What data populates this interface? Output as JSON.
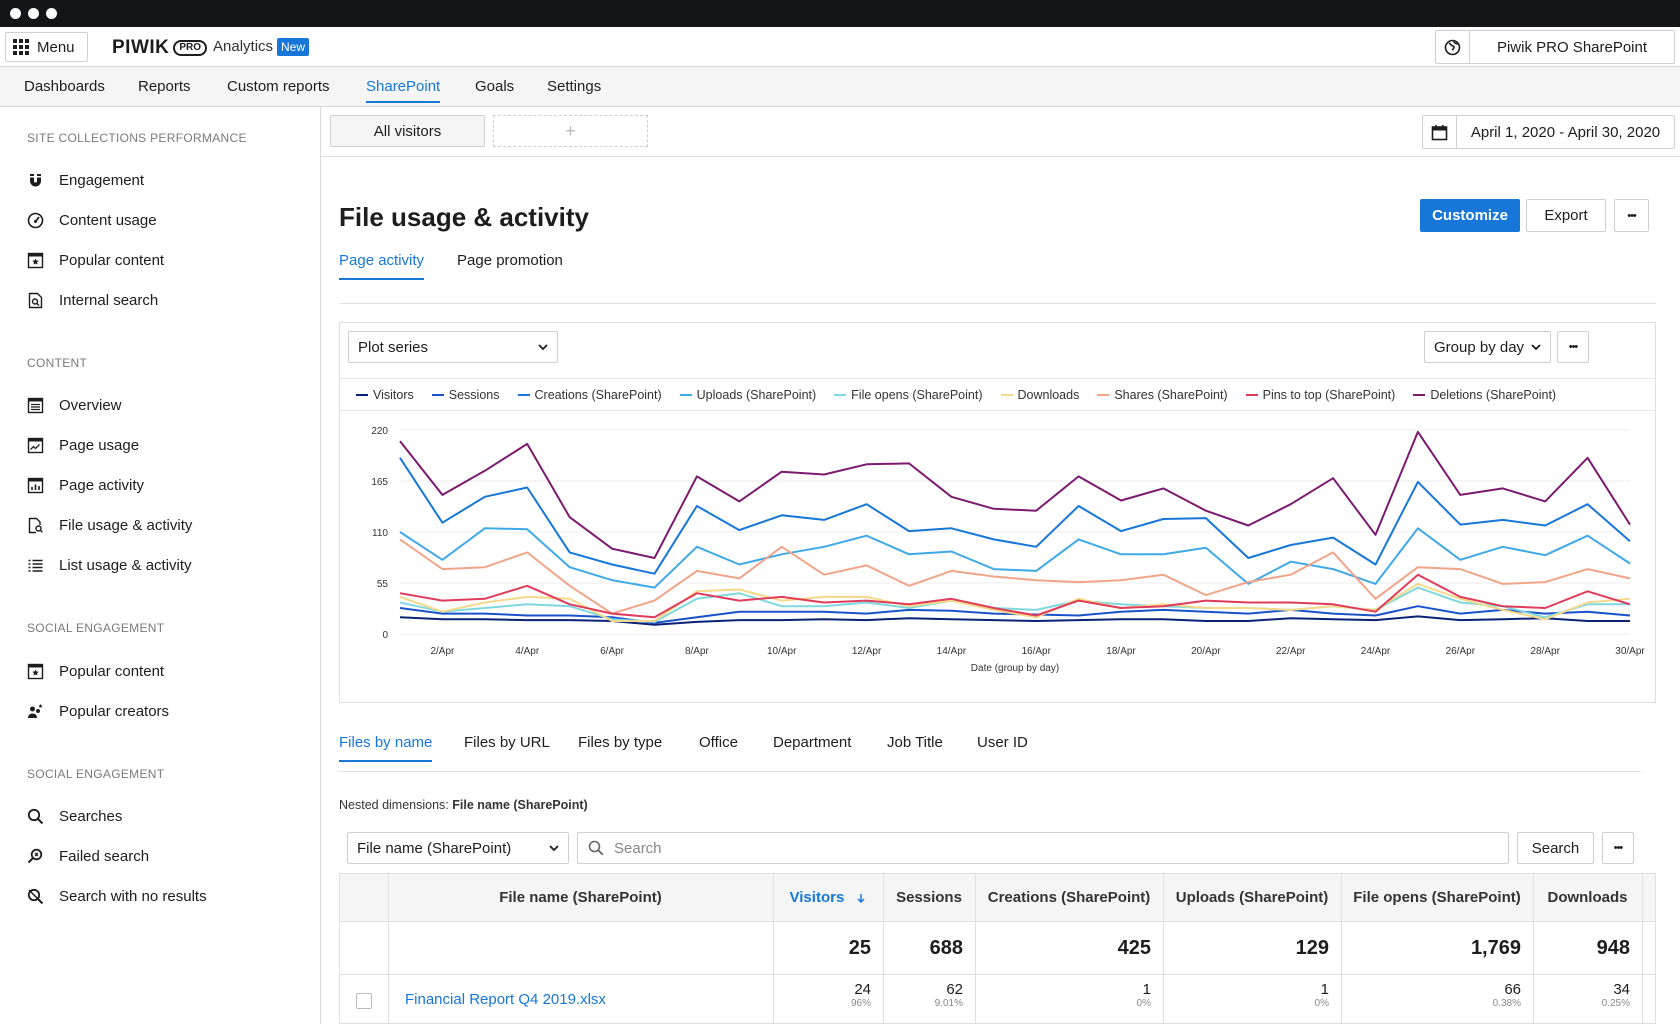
{
  "topbar": {
    "menu_label": "Menu",
    "logo_wordmark": "PIWIK",
    "logo_pro": "PRO",
    "app_name": "Analytics",
    "badge": "New",
    "site": "Piwik PRO SharePoint"
  },
  "nav": [
    {
      "label": "Dashboards"
    },
    {
      "label": "Reports"
    },
    {
      "label": "Custom reports"
    },
    {
      "label": "SharePoint",
      "active": true
    },
    {
      "label": "Goals"
    },
    {
      "label": "Settings"
    }
  ],
  "sidebar": {
    "sections": [
      {
        "title": "SITE COLLECTIONS PERFORMANCE",
        "items": [
          {
            "label": "Engagement",
            "icon": "magnet-icon"
          },
          {
            "label": "Content usage",
            "icon": "gauge-icon"
          },
          {
            "label": "Popular content",
            "icon": "star-page-icon"
          },
          {
            "label": "Internal search",
            "icon": "search-page-icon"
          }
        ]
      },
      {
        "title": "CONTENT",
        "items": [
          {
            "label": "Overview",
            "icon": "list-page-icon"
          },
          {
            "label": "Page usage",
            "icon": "trend-page-icon"
          },
          {
            "label": "Page activity",
            "icon": "bar-page-icon"
          },
          {
            "label": "File usage & activity",
            "icon": "file-search-icon"
          },
          {
            "label": "List usage & activity",
            "icon": "list-icon"
          }
        ]
      },
      {
        "title": "SOCIAL ENGAGEMENT",
        "items": [
          {
            "label": "Popular content",
            "icon": "star-page-icon"
          },
          {
            "label": "Popular creators",
            "icon": "users-star-icon"
          }
        ]
      },
      {
        "title": "SOCIAL ENGAGEMENT",
        "items": [
          {
            "label": "Searches",
            "icon": "search-icon"
          },
          {
            "label": "Failed search",
            "icon": "search-fail-icon"
          },
          {
            "label": "Search with no results",
            "icon": "search-off-icon"
          }
        ]
      }
    ]
  },
  "segments": {
    "active": "All visitors",
    "add": "+"
  },
  "date_range": "April 1,  2020 - April 30, 2020",
  "page": {
    "title": "File usage & activity",
    "customize": "Customize",
    "export": "Export",
    "more": "•••"
  },
  "report_tabs": [
    {
      "label": "Page activity",
      "active": true
    },
    {
      "label": "Page promotion"
    }
  ],
  "chart_controls": {
    "plot_series": "Plot series",
    "group_by": "Group by day",
    "more": "•••"
  },
  "chart_data": {
    "type": "line",
    "xlabel": "Date (group by day)",
    "ylabel": "",
    "ylim": [
      0,
      220
    ],
    "yticks": [
      0,
      55,
      110,
      165,
      220
    ],
    "x": [
      "1/Apr",
      "2/Apr",
      "3/Apr",
      "4/Apr",
      "5/Apr",
      "6/Apr",
      "7/Apr",
      "8/Apr",
      "9/Apr",
      "10/Apr",
      "11/Apr",
      "12/Apr",
      "13/Apr",
      "14/Apr",
      "15/Apr",
      "16/Apr",
      "17/Apr",
      "18/Apr",
      "19/Apr",
      "20/Apr",
      "21/Apr",
      "22/Apr",
      "23/Apr",
      "24/Apr",
      "25/Apr",
      "26/Apr",
      "27/Apr",
      "28/Apr",
      "29/Apr",
      "30/Apr"
    ],
    "xtick_labels": [
      "2/Apr",
      "4/Apr",
      "6/Apr",
      "8/Apr",
      "10/Apr",
      "12/Apr",
      "14/Apr",
      "16/Apr",
      "18/Apr",
      "20/Apr",
      "22/Apr",
      "24/Apr",
      "26/Apr",
      "28/Apr",
      "30/Apr"
    ],
    "series": [
      {
        "name": "Visitors",
        "color": "#0b2176",
        "values": [
          18,
          16,
          16,
          15,
          15,
          14,
          10,
          13,
          15,
          15,
          16,
          15,
          17,
          16,
          15,
          14,
          15,
          16,
          16,
          14,
          14,
          17,
          16,
          15,
          19,
          15,
          16,
          17,
          14,
          14
        ]
      },
      {
        "name": "Sessions",
        "color": "#1a52c9",
        "values": [
          28,
          22,
          22,
          20,
          20,
          18,
          12,
          18,
          24,
          24,
          24,
          22,
          26,
          25,
          22,
          21,
          20,
          24,
          26,
          24,
          22,
          26,
          22,
          20,
          30,
          22,
          26,
          22,
          24,
          20
        ]
      },
      {
        "name": "Creations (SharePoint)",
        "color": "#1677d9",
        "values": [
          190,
          120,
          148,
          158,
          88,
          75,
          65,
          138,
          112,
          128,
          123,
          140,
          111,
          114,
          102,
          94,
          138,
          111,
          124,
          125,
          82,
          96,
          104,
          75,
          164,
          118,
          123,
          117,
          140,
          100
        ]
      },
      {
        "name": "Uploads (SharePoint)",
        "color": "#3fa9e8",
        "values": [
          110,
          80,
          114,
          113,
          72,
          58,
          50,
          94,
          75,
          86,
          94,
          106,
          86,
          89,
          70,
          68,
          102,
          86,
          86,
          93,
          54,
          78,
          70,
          54,
          114,
          80,
          94,
          85,
          106,
          76
        ]
      },
      {
        "name": "File opens (SharePoint)",
        "color": "#7fd8e0",
        "values": [
          34,
          24,
          28,
          32,
          30,
          16,
          13,
          38,
          44,
          30,
          30,
          34,
          28,
          36,
          28,
          26,
          36,
          32,
          30,
          28,
          28,
          26,
          30,
          26,
          50,
          34,
          30,
          18,
          32,
          32
        ]
      },
      {
        "name": "Downloads",
        "color": "#f5d98a",
        "values": [
          40,
          24,
          34,
          40,
          38,
          14,
          14,
          46,
          48,
          36,
          40,
          40,
          30,
          36,
          26,
          18,
          38,
          28,
          32,
          28,
          28,
          26,
          30,
          26,
          54,
          38,
          26,
          16,
          34,
          38
        ]
      },
      {
        "name": "Shares (SharePoint)",
        "color": "#f0a488",
        "values": [
          102,
          70,
          72,
          88,
          52,
          22,
          36,
          68,
          60,
          94,
          64,
          74,
          52,
          68,
          62,
          58,
          56,
          58,
          64,
          42,
          56,
          64,
          88,
          38,
          72,
          70,
          54,
          56,
          70,
          60
        ]
      },
      {
        "name": "Pins to top (SharePoint)",
        "color": "#e03b5a",
        "values": [
          44,
          36,
          38,
          52,
          32,
          22,
          18,
          44,
          36,
          40,
          34,
          36,
          32,
          38,
          28,
          20,
          36,
          28,
          30,
          36,
          34,
          34,
          32,
          24,
          64,
          40,
          30,
          28,
          46,
          32
        ]
      },
      {
        "name": "Deletions (SharePoint)",
        "color": "#7b1a6f",
        "values": [
          208,
          150,
          176,
          205,
          126,
          92,
          82,
          170,
          143,
          175,
          172,
          183,
          184,
          148,
          135,
          133,
          170,
          144,
          157,
          133,
          117,
          140,
          168,
          107,
          218,
          150,
          157,
          143,
          190,
          118
        ]
      }
    ]
  },
  "dimension_tabs": [
    {
      "label": "Files by name",
      "active": true
    },
    {
      "label": "Files by URL"
    },
    {
      "label": "Files by type"
    },
    {
      "label": "Office"
    },
    {
      "label": "Department"
    },
    {
      "label": "Job Title"
    },
    {
      "label": "User ID"
    }
  ],
  "nested": {
    "prefix": "Nested dimensions:",
    "value": "File name (SharePoint)"
  },
  "filter": {
    "dimension": "File name (SharePoint)",
    "search_placeholder": "Search",
    "search_button": "Search",
    "more": "•••"
  },
  "table": {
    "columns": [
      "File name (SharePoint)",
      "Visitors",
      "Sessions",
      "Creations (SharePoint)",
      "Uploads (SharePoint)",
      "File opens (SharePoint)",
      "Downloads"
    ],
    "sorted_by": "Visitors",
    "totals": [
      "25",
      "688",
      "425",
      "129",
      "1,769",
      "948"
    ],
    "rows": [
      {
        "name": "Financial Report Q4 2019.xlsx",
        "values": [
          "24",
          "62",
          "1",
          "1",
          "66",
          "34"
        ],
        "pcts": [
          "96%",
          "9.01%",
          "0%",
          "0%",
          "0.38%",
          "0.25%"
        ]
      }
    ]
  }
}
